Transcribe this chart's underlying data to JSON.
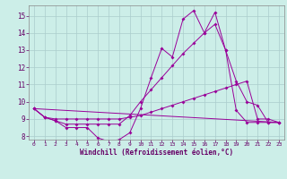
{
  "xlabel": "Windchill (Refroidissement éolien,°C)",
  "background_color": "#cceee8",
  "grid_color": "#aacccc",
  "line_color": "#990099",
  "xlim": [
    -0.5,
    23.5
  ],
  "ylim": [
    7.8,
    15.6
  ],
  "yticks": [
    8,
    9,
    10,
    11,
    12,
    13,
    14,
    15
  ],
  "xticks": [
    0,
    1,
    2,
    3,
    4,
    5,
    6,
    7,
    8,
    9,
    10,
    11,
    12,
    13,
    14,
    15,
    16,
    17,
    18,
    19,
    20,
    21,
    22,
    23
  ],
  "series1_x": [
    0,
    1,
    2,
    3,
    4,
    5,
    6,
    7,
    8,
    9,
    10,
    11,
    12,
    13,
    14,
    15,
    16,
    17,
    18,
    19,
    20,
    21,
    22,
    23
  ],
  "series1_y": [
    9.6,
    9.1,
    8.9,
    8.5,
    8.5,
    8.5,
    7.9,
    7.7,
    7.8,
    8.2,
    9.6,
    11.4,
    13.1,
    12.6,
    14.8,
    15.3,
    14.0,
    15.2,
    13.0,
    11.2,
    10.0,
    9.8,
    8.8,
    8.8
  ],
  "series2_x": [
    0,
    1,
    2,
    3,
    4,
    5,
    6,
    7,
    8,
    9,
    10,
    11,
    12,
    13,
    14,
    15,
    16,
    17,
    18,
    19,
    20,
    21,
    22,
    23
  ],
  "series2_y": [
    9.6,
    9.1,
    8.9,
    8.7,
    8.7,
    8.7,
    8.7,
    8.7,
    8.7,
    9.2,
    10.0,
    10.7,
    11.4,
    12.1,
    12.8,
    13.4,
    14.0,
    14.5,
    13.0,
    9.5,
    8.8,
    8.8,
    8.8,
    8.8
  ],
  "series3_x": [
    0,
    1,
    2,
    3,
    4,
    5,
    6,
    7,
    8,
    9,
    10,
    11,
    12,
    13,
    14,
    15,
    16,
    17,
    18,
    19,
    20,
    21,
    22,
    23
  ],
  "series3_y": [
    9.6,
    9.1,
    9.0,
    9.0,
    9.0,
    9.0,
    9.0,
    9.0,
    9.0,
    9.1,
    9.2,
    9.4,
    9.6,
    9.8,
    10.0,
    10.2,
    10.4,
    10.6,
    10.8,
    11.0,
    11.2,
    9.0,
    9.0,
    8.8
  ],
  "series4_x": [
    0,
    23
  ],
  "series4_y": [
    9.6,
    8.8
  ]
}
